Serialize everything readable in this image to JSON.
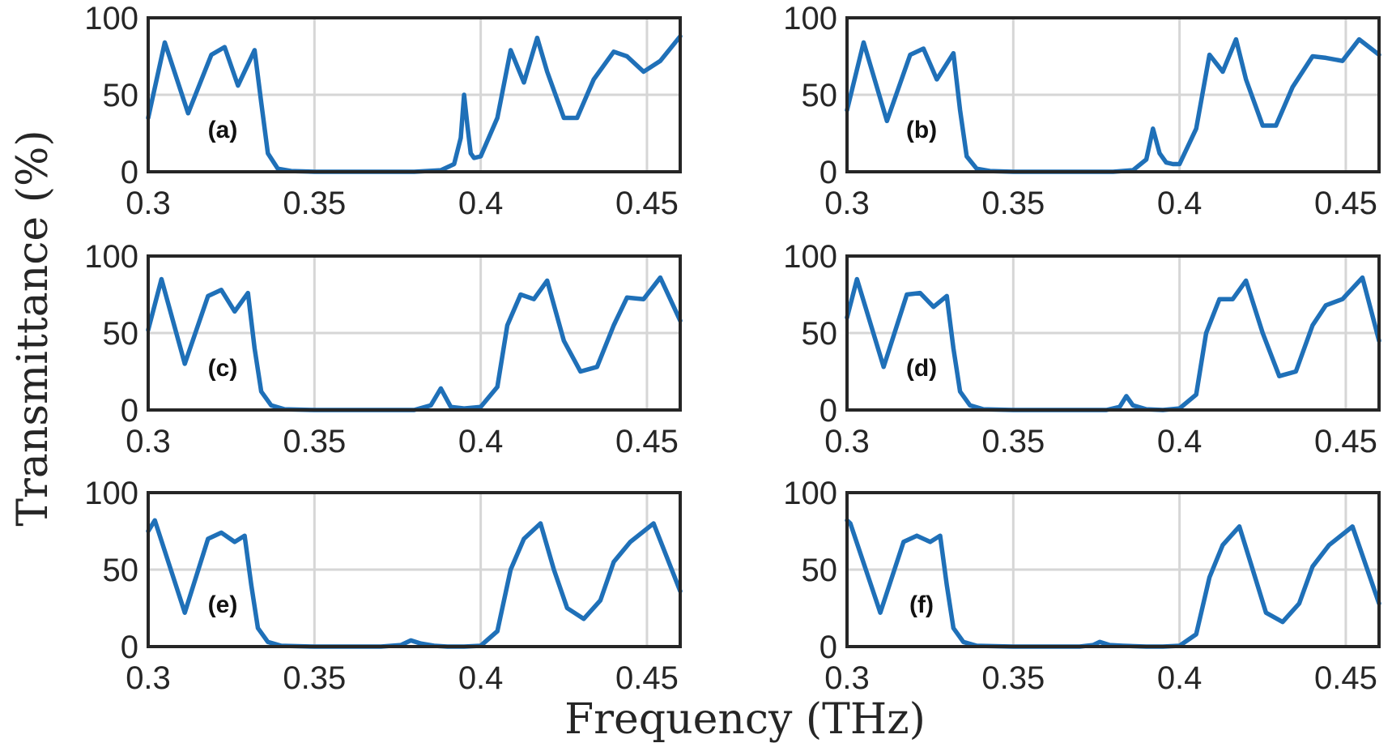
{
  "figure": {
    "xlabel": "Frequency (THz)",
    "ylabel": "Transmittance (%)",
    "line_color": "#1f70b8"
  },
  "chart_data": [
    {
      "type": "line",
      "panel_label": "(a)",
      "xlim": [
        0.3,
        0.46
      ],
      "ylim": [
        0,
        100
      ],
      "xticks": [
        "0.3",
        "0.35",
        "0.4",
        "0.45"
      ],
      "yticks": [
        "0",
        "50",
        "100"
      ],
      "grid": true,
      "series": [
        {
          "x": [
            0.3,
            0.305,
            0.312,
            0.319,
            0.323,
            0.327,
            0.332,
            0.334,
            0.336,
            0.339,
            0.343,
            0.35,
            0.36,
            0.37,
            0.38,
            0.388,
            0.392,
            0.394,
            0.395,
            0.396,
            0.397,
            0.398,
            0.4,
            0.405,
            0.409,
            0.413,
            0.417,
            0.42,
            0.425,
            0.429,
            0.434,
            0.44,
            0.444,
            0.449,
            0.454,
            0.46
          ],
          "y": [
            35,
            84,
            38,
            76,
            81,
            56,
            79,
            45,
            12,
            2,
            0.5,
            0,
            0,
            0,
            0,
            1,
            5,
            22,
            50,
            30,
            12,
            9,
            10,
            35,
            79,
            58,
            87,
            65,
            35,
            35,
            60,
            78,
            75,
            65,
            72,
            88
          ]
        }
      ]
    },
    {
      "type": "line",
      "panel_label": "(b)",
      "xlim": [
        0.3,
        0.46
      ],
      "ylim": [
        0,
        100
      ],
      "xticks": [
        "0.3",
        "0.35",
        "0.4",
        "0.45"
      ],
      "yticks": [
        "0",
        "50",
        "100"
      ],
      "grid": true,
      "series": [
        {
          "x": [
            0.3,
            0.305,
            0.312,
            0.319,
            0.323,
            0.327,
            0.332,
            0.334,
            0.336,
            0.339,
            0.343,
            0.35,
            0.36,
            0.37,
            0.38,
            0.386,
            0.39,
            0.392,
            0.394,
            0.396,
            0.398,
            0.4,
            0.405,
            0.409,
            0.413,
            0.417,
            0.42,
            0.425,
            0.429,
            0.434,
            0.44,
            0.444,
            0.449,
            0.454,
            0.46
          ],
          "y": [
            40,
            84,
            33,
            76,
            80,
            60,
            77,
            40,
            10,
            2,
            0.5,
            0,
            0,
            0,
            0,
            1,
            8,
            28,
            12,
            6,
            5,
            5,
            28,
            76,
            65,
            86,
            60,
            30,
            30,
            55,
            75,
            74,
            72,
            86,
            76
          ]
        }
      ]
    },
    {
      "type": "line",
      "panel_label": "(c)",
      "xlim": [
        0.3,
        0.46
      ],
      "ylim": [
        0,
        100
      ],
      "xticks": [
        "0.3",
        "0.35",
        "0.4",
        "0.45"
      ],
      "yticks": [
        "0",
        "50",
        "100"
      ],
      "grid": true,
      "series": [
        {
          "x": [
            0.3,
            0.304,
            0.311,
            0.318,
            0.322,
            0.326,
            0.33,
            0.332,
            0.334,
            0.337,
            0.341,
            0.35,
            0.36,
            0.37,
            0.38,
            0.385,
            0.388,
            0.391,
            0.395,
            0.4,
            0.405,
            0.408,
            0.412,
            0.416,
            0.42,
            0.425,
            0.43,
            0.435,
            0.44,
            0.444,
            0.449,
            0.454,
            0.46
          ],
          "y": [
            52,
            85,
            30,
            74,
            78,
            64,
            76,
            40,
            12,
            3,
            0.5,
            0,
            0,
            0,
            0,
            3,
            14,
            2,
            1,
            2,
            15,
            55,
            75,
            72,
            84,
            45,
            25,
            28,
            55,
            73,
            72,
            86,
            58
          ]
        }
      ]
    },
    {
      "type": "line",
      "panel_label": "(d)",
      "xlim": [
        0.3,
        0.46
      ],
      "ylim": [
        0,
        100
      ],
      "xticks": [
        "0.3",
        "0.35",
        "0.4",
        "0.45"
      ],
      "yticks": [
        "0",
        "50",
        "100"
      ],
      "grid": true,
      "series": [
        {
          "x": [
            0.3,
            0.303,
            0.311,
            0.318,
            0.322,
            0.326,
            0.33,
            0.332,
            0.334,
            0.337,
            0.341,
            0.35,
            0.36,
            0.37,
            0.378,
            0.382,
            0.384,
            0.386,
            0.39,
            0.395,
            0.4,
            0.405,
            0.408,
            0.412,
            0.416,
            0.42,
            0.425,
            0.43,
            0.435,
            0.44,
            0.444,
            0.449,
            0.455,
            0.46
          ],
          "y": [
            60,
            85,
            28,
            75,
            76,
            67,
            74,
            40,
            12,
            3,
            0.5,
            0,
            0,
            0,
            0,
            2,
            9,
            3,
            0.5,
            0,
            1,
            10,
            50,
            72,
            72,
            84,
            50,
            22,
            25,
            55,
            68,
            72,
            86,
            45
          ]
        }
      ]
    },
    {
      "type": "line",
      "panel_label": "(e)",
      "xlim": [
        0.3,
        0.46
      ],
      "ylim": [
        0,
        100
      ],
      "xticks": [
        "0.3",
        "0.35",
        "0.4",
        "0.45"
      ],
      "yticks": [
        "0",
        "50",
        "100"
      ],
      "grid": true,
      "series": [
        {
          "x": [
            0.3,
            0.302,
            0.311,
            0.318,
            0.322,
            0.326,
            0.329,
            0.331,
            0.333,
            0.336,
            0.34,
            0.35,
            0.36,
            0.37,
            0.376,
            0.379,
            0.382,
            0.386,
            0.39,
            0.395,
            0.4,
            0.405,
            0.409,
            0.413,
            0.418,
            0.422,
            0.426,
            0.431,
            0.436,
            0.44,
            0.445,
            0.452,
            0.46
          ],
          "y": [
            75,
            82,
            22,
            70,
            74,
            68,
            72,
            40,
            12,
            3,
            0.5,
            0,
            0,
            0,
            1,
            4,
            2,
            0.5,
            0,
            0,
            0.5,
            10,
            50,
            70,
            80,
            50,
            25,
            18,
            30,
            55,
            68,
            80,
            36
          ]
        }
      ]
    },
    {
      "type": "line",
      "panel_label": "(f)",
      "xlim": [
        0.3,
        0.46
      ],
      "ylim": [
        0,
        100
      ],
      "xticks": [
        "0.3",
        "0.35",
        "0.4",
        "0.45"
      ],
      "yticks": [
        "0",
        "50",
        "100"
      ],
      "grid": true,
      "series": [
        {
          "x": [
            0.3,
            0.301,
            0.31,
            0.317,
            0.321,
            0.325,
            0.328,
            0.33,
            0.332,
            0.335,
            0.339,
            0.35,
            0.36,
            0.37,
            0.374,
            0.376,
            0.379,
            0.383,
            0.39,
            0.395,
            0.4,
            0.405,
            0.409,
            0.413,
            0.418,
            0.422,
            0.426,
            0.431,
            0.436,
            0.44,
            0.445,
            0.452,
            0.46
          ],
          "y": [
            82,
            80,
            22,
            68,
            72,
            68,
            72,
            40,
            12,
            3,
            0.5,
            0,
            0,
            0,
            1,
            3,
            1,
            0.5,
            0,
            0,
            0.5,
            8,
            45,
            66,
            78,
            50,
            22,
            16,
            28,
            52,
            66,
            78,
            28
          ]
        }
      ]
    }
  ]
}
